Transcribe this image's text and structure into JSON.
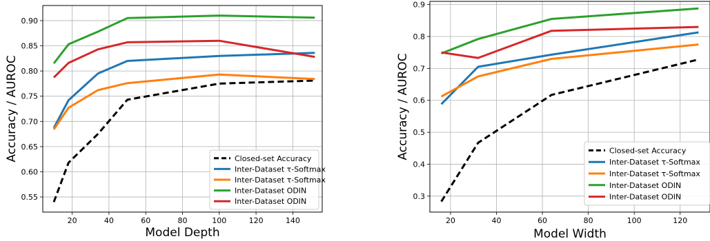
{
  "chart_data": [
    {
      "type": "line",
      "xlabel": "Model Depth",
      "ylabel": "Accuracy / AUROC",
      "xlim": [
        4,
        156
      ],
      "ylim": [
        0.52,
        0.93
      ],
      "xticks": [
        20,
        40,
        60,
        80,
        100,
        120,
        140
      ],
      "yticks": [
        0.55,
        0.6,
        0.65,
        0.7,
        0.75,
        0.8,
        0.85,
        0.9
      ],
      "grid": true,
      "legend_position": "lower-right",
      "series": [
        {
          "name": "Closed-set Accuracy",
          "color": "#000000",
          "dash": true,
          "x": [
            10,
            18,
            34,
            50,
            100,
            152
          ],
          "y": [
            0.54,
            0.618,
            0.675,
            0.743,
            0.775,
            0.781
          ]
        },
        {
          "name": "Inter-Dataset τ-Softmax",
          "color": "#1f77b4",
          "dash": false,
          "x": [
            10,
            18,
            34,
            50,
            100,
            152
          ],
          "y": [
            0.687,
            0.742,
            0.795,
            0.82,
            0.83,
            0.836
          ]
        },
        {
          "name": "Inter-Dataset τ-Softmax",
          "color": "#ff7f0e",
          "dash": false,
          "x": [
            10,
            18,
            34,
            50,
            100,
            152
          ],
          "y": [
            0.684,
            0.727,
            0.762,
            0.776,
            0.793,
            0.784
          ]
        },
        {
          "name": "Inter-Dataset ODIN",
          "color": "#2ca02c",
          "dash": false,
          "x": [
            10,
            18,
            34,
            50,
            100,
            152
          ],
          "y": [
            0.815,
            0.853,
            0.878,
            0.905,
            0.91,
            0.906
          ]
        },
        {
          "name": "Inter-Dataset ODIN",
          "color": "#d62728",
          "dash": false,
          "x": [
            10,
            18,
            34,
            50,
            100,
            152
          ],
          "y": [
            0.787,
            0.816,
            0.843,
            0.857,
            0.86,
            0.828
          ]
        }
      ]
    },
    {
      "type": "line",
      "xlabel": "Model Width",
      "ylabel": "Accuracy / AUROC",
      "xlim": [
        11,
        133
      ],
      "ylim": [
        0.25,
        0.91
      ],
      "xticks": [
        20,
        40,
        60,
        80,
        100,
        120
      ],
      "yticks": [
        0.3,
        0.4,
        0.5,
        0.6,
        0.7,
        0.8,
        0.9
      ],
      "grid": true,
      "legend_position": "lower-right",
      "series": [
        {
          "name": "Closed-set Accuracy",
          "color": "#000000",
          "dash": true,
          "x": [
            16,
            32,
            64,
            128
          ],
          "y": [
            0.283,
            0.467,
            0.617,
            0.728
          ]
        },
        {
          "name": "Inter-Dataset τ-Softmax",
          "color": "#1f77b4",
          "dash": false,
          "x": [
            16,
            32,
            64,
            128
          ],
          "y": [
            0.588,
            0.705,
            0.743,
            0.813
          ]
        },
        {
          "name": "Inter-Dataset τ-Softmax",
          "color": "#ff7f0e",
          "dash": false,
          "x": [
            16,
            32,
            64,
            128
          ],
          "y": [
            0.612,
            0.675,
            0.73,
            0.775
          ]
        },
        {
          "name": "Inter-Dataset ODIN",
          "color": "#2ca02c",
          "dash": false,
          "x": [
            16,
            32,
            64,
            128
          ],
          "y": [
            0.747,
            0.792,
            0.855,
            0.888
          ]
        },
        {
          "name": "Inter-Dataset ODIN",
          "color": "#d62728",
          "dash": false,
          "x": [
            16,
            32,
            64,
            128
          ],
          "y": [
            0.75,
            0.733,
            0.818,
            0.83
          ]
        }
      ]
    }
  ]
}
